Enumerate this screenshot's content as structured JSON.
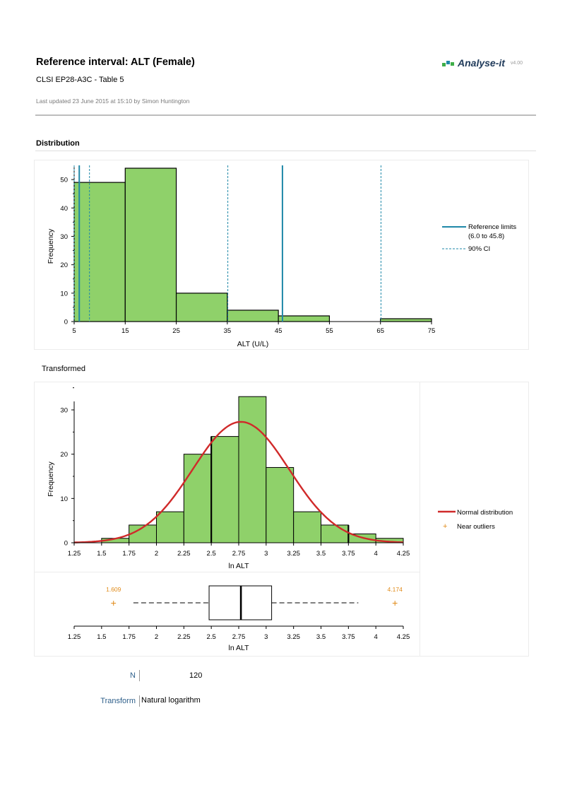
{
  "header": {
    "title": "Reference interval: ALT (Female)",
    "subtitle": "CLSI EP28-A3C - Table 5",
    "updated": "Last updated 23 June 2015 at 15:10 by Simon Huntington",
    "logo_text": "Analyse-it",
    "logo_version": "v4.00"
  },
  "colors": {
    "bar_fill": "#8fd16a",
    "ref_line": "#1f88a8",
    "normal_curve": "#d02a2a",
    "outlier": "#e08b1a",
    "logo_green": "#3fae49",
    "logo_blue": "#1f88a8"
  },
  "sections": {
    "distribution": "Distribution",
    "transformed": "Transformed"
  },
  "stats": {
    "n_label": "N",
    "n_value": "120",
    "transform_label": "Transform",
    "transform_value": "Natural logarithm"
  },
  "chart_data": [
    {
      "type": "bar",
      "title": "Distribution",
      "xlabel": "ALT (U/L)",
      "ylabel": "Frequency",
      "xlim": [
        5,
        75
      ],
      "ylim": [
        0,
        55
      ],
      "xticks": [
        "5",
        "15",
        "25",
        "35",
        "45",
        "55",
        "65",
        "75"
      ],
      "yticks": [
        "0",
        "10",
        "20",
        "30",
        "40",
        "50"
      ],
      "bins": [
        {
          "from": 5,
          "to": 15,
          "count": 49
        },
        {
          "from": 15,
          "to": 25,
          "count": 54
        },
        {
          "from": 25,
          "to": 35,
          "count": 10
        },
        {
          "from": 35,
          "to": 45,
          "count": 4
        },
        {
          "from": 45,
          "to": 55,
          "count": 2
        },
        {
          "from": 55,
          "to": 65,
          "count": 0
        },
        {
          "from": 65,
          "to": 75,
          "count": 1
        }
      ],
      "reference_limits": [
        6.0,
        45.8
      ],
      "ci_lines": [
        5.0,
        8.0,
        35.1,
        65.1
      ],
      "legend": {
        "reference_limits": "Reference limits",
        "reference_limits_range": "(6.0 to 45.8)",
        "ci": "90% CI"
      }
    },
    {
      "type": "bar",
      "title": "Transformed",
      "xlabel": "ln ALT",
      "ylabel": "Frequency",
      "xlim": [
        1.25,
        4.25
      ],
      "ylim": [
        0,
        35
      ],
      "xticks": [
        "1.25",
        "1.5",
        "1.75",
        "2",
        "2.25",
        "2.5",
        "2.75",
        "3",
        "3.25",
        "3.5",
        "3.75",
        "4",
        "4.25"
      ],
      "yticks": [
        "0",
        "10",
        "20",
        "30"
      ],
      "bins": [
        {
          "from": 1.5,
          "to": 1.75,
          "count": 1
        },
        {
          "from": 1.75,
          "to": 2.0,
          "count": 4
        },
        {
          "from": 2.0,
          "to": 2.25,
          "count": 7
        },
        {
          "from": 2.25,
          "to": 2.5,
          "count": 20
        },
        {
          "from": 2.5,
          "to": 2.75,
          "count": 24
        },
        {
          "from": 2.75,
          "to": 3.0,
          "count": 33
        },
        {
          "from": 3.0,
          "to": 3.25,
          "count": 17
        },
        {
          "from": 3.25,
          "to": 3.5,
          "count": 7
        },
        {
          "from": 3.5,
          "to": 3.75,
          "count": 4
        },
        {
          "from": 3.75,
          "to": 4.0,
          "count": 2
        },
        {
          "from": 4.0,
          "to": 4.25,
          "count": 1
        }
      ],
      "normal_curve": {
        "mean": 2.77,
        "sd": 0.44,
        "peak": 27.3
      },
      "legend": {
        "normal": "Normal distribution",
        "outliers": "Near outliers"
      }
    },
    {
      "type": "box",
      "xlabel": "ln ALT",
      "xlim": [
        1.25,
        4.25
      ],
      "xticks": [
        "1.25",
        "1.5",
        "1.75",
        "2",
        "2.25",
        "2.5",
        "2.75",
        "3",
        "3.25",
        "3.5",
        "3.75",
        "4",
        "4.25"
      ],
      "q1": 2.48,
      "median": 2.77,
      "q3": 3.05,
      "whisker_low": 1.79,
      "whisker_high": 3.84,
      "outliers": [
        {
          "value": 1.609,
          "label": "1.609"
        },
        {
          "value": 4.174,
          "label": "4.174"
        }
      ]
    }
  ]
}
